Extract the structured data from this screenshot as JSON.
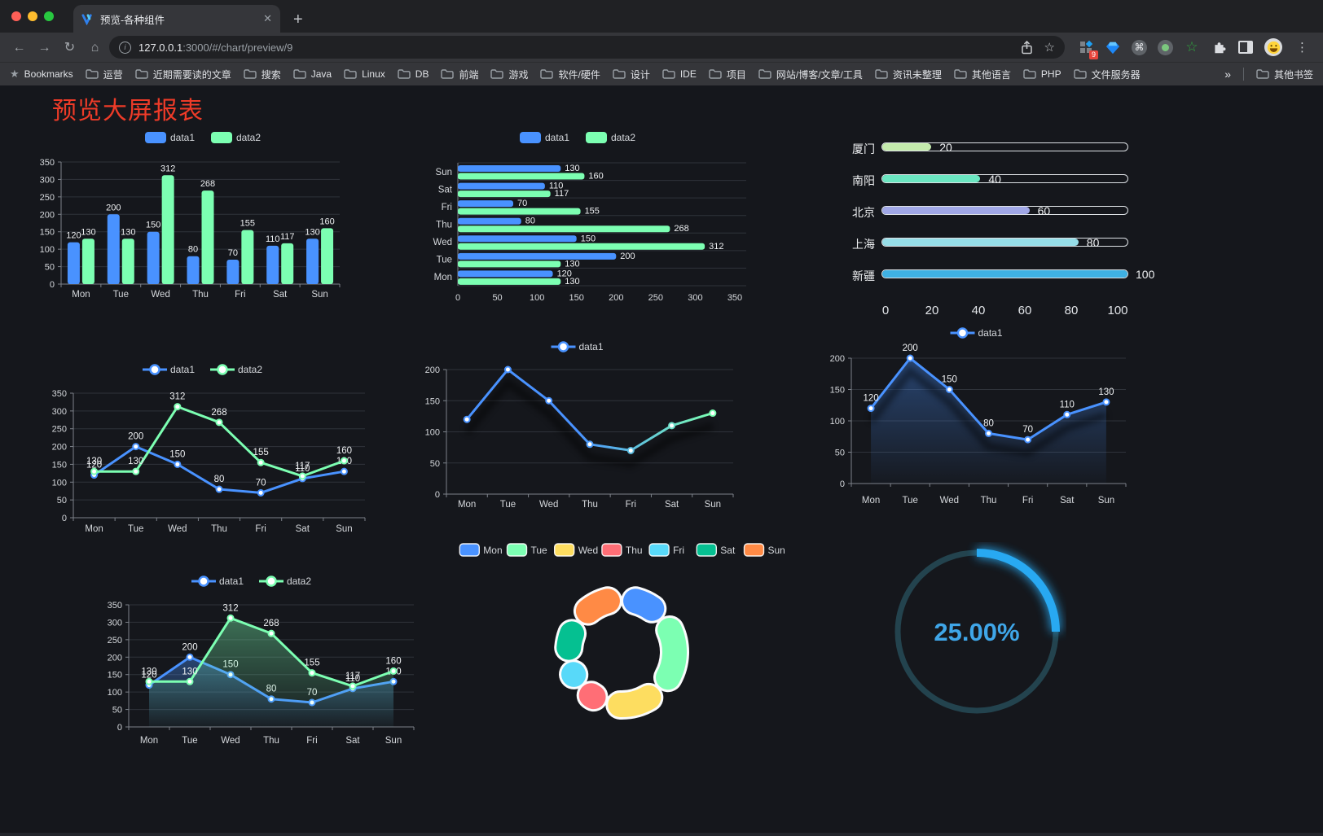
{
  "browser": {
    "tab_title": "预览-各种组件",
    "url_host": "127.0.0.1",
    "url_rest": ":3000/#/chart/preview/9",
    "extension_badge": "9",
    "bookmarks_label": "Bookmarks",
    "bookmark_folders": [
      "运营",
      "近期需要读的文章",
      "搜索",
      "Java",
      "Linux",
      "DB",
      "前端",
      "游戏",
      "软件/硬件",
      "设计",
      "IDE",
      "项目",
      "网站/博客/文章/工具",
      "资讯未整理",
      "其他语言",
      "PHP",
      "文件服务器"
    ],
    "overflow_symbol": "»",
    "other_bookmarks": "其他书签"
  },
  "page": {
    "title": "预览大屏报表",
    "title_color": "#ee3b28",
    "background": "#15171c"
  },
  "chart_data": [
    {
      "id": "grouped-bar",
      "type": "bar",
      "categories": [
        "Mon",
        "Tue",
        "Wed",
        "Thu",
        "Fri",
        "Sat",
        "Sun"
      ],
      "series": [
        {
          "name": "data1",
          "color": "#4992ff",
          "values": [
            120,
            200,
            150,
            80,
            70,
            110,
            130
          ]
        },
        {
          "name": "data2",
          "color": "#7cffb2",
          "values": [
            130,
            130,
            312,
            268,
            155,
            117,
            160
          ]
        }
      ],
      "ylim": [
        0,
        350
      ],
      "ytick": 50,
      "legend_position": "top",
      "grid": true
    },
    {
      "id": "horizontal-bar",
      "type": "bar",
      "orientation": "horizontal",
      "categories": [
        "Mon",
        "Tue",
        "Wed",
        "Thu",
        "Fri",
        "Sat",
        "Sun"
      ],
      "series": [
        {
          "name": "data1",
          "color": "#4992ff",
          "values": [
            120,
            200,
            150,
            80,
            70,
            110,
            130
          ]
        },
        {
          "name": "data2",
          "color": "#7cffb2",
          "values": [
            130,
            130,
            312,
            268,
            155,
            117,
            160
          ]
        }
      ],
      "xlim": [
        0,
        350
      ],
      "xtick": 50,
      "legend_position": "top"
    },
    {
      "id": "progress-bars",
      "type": "bar",
      "subtype": "progress",
      "max": 100,
      "axis_ticks": [
        0,
        20,
        40,
        60,
        80,
        100
      ],
      "items": [
        {
          "label": "厦门",
          "value": 20,
          "color": "#c4ebad"
        },
        {
          "label": "南阳",
          "value": 40,
          "color": "#6be6c1"
        },
        {
          "label": "北京",
          "value": 60,
          "color": "#a0a7e6"
        },
        {
          "label": "上海",
          "value": 80,
          "color": "#96dee8"
        },
        {
          "label": "新疆",
          "value": 100,
          "color": "#3fb1e3"
        }
      ]
    },
    {
      "id": "line-two-series",
      "type": "line",
      "categories": [
        "Mon",
        "Tue",
        "Wed",
        "Thu",
        "Fri",
        "Sat",
        "Sun"
      ],
      "series": [
        {
          "name": "data1",
          "color": "#4992ff",
          "values": [
            120,
            200,
            150,
            80,
            70,
            110,
            130
          ]
        },
        {
          "name": "data2",
          "color": "#7cffb2",
          "values": [
            130,
            130,
            312,
            268,
            155,
            117,
            160
          ]
        }
      ],
      "ylim": [
        0,
        350
      ],
      "ytick": 50,
      "show_labels": true,
      "legend_position": "top"
    },
    {
      "id": "line-gradient",
      "type": "line",
      "categories": [
        "Mon",
        "Tue",
        "Wed",
        "Thu",
        "Fri",
        "Sat",
        "Sun"
      ],
      "series": [
        {
          "name": "data1",
          "color": "#4992ff",
          "gradient": [
            "#4992ff",
            "#7cffb2"
          ],
          "values": [
            120,
            200,
            150,
            80,
            70,
            110,
            130
          ]
        }
      ],
      "ylim": [
        0,
        200
      ],
      "ytick": 50,
      "show_labels": false,
      "legend_position": "top"
    },
    {
      "id": "area-line",
      "type": "area",
      "categories": [
        "Mon",
        "Tue",
        "Wed",
        "Thu",
        "Fri",
        "Sat",
        "Sun"
      ],
      "series": [
        {
          "name": "data1",
          "color": "#4992ff",
          "area": true,
          "values": [
            120,
            200,
            150,
            80,
            70,
            110,
            130
          ]
        }
      ],
      "ylim": [
        0,
        200
      ],
      "ytick": 50,
      "show_labels": true,
      "legend_position": "top"
    },
    {
      "id": "line-area-two-series",
      "type": "area",
      "categories": [
        "Mon",
        "Tue",
        "Wed",
        "Thu",
        "Fri",
        "Sat",
        "Sun"
      ],
      "series": [
        {
          "name": "data1",
          "color": "#4992ff",
          "area": true,
          "values": [
            120,
            200,
            150,
            80,
            70,
            110,
            130
          ]
        },
        {
          "name": "data2",
          "color": "#7cffb2",
          "area": true,
          "values": [
            130,
            130,
            312,
            268,
            155,
            117,
            160
          ]
        }
      ],
      "ylim": [
        0,
        350
      ],
      "ytick": 50,
      "show_labels": true,
      "legend_position": "top"
    },
    {
      "id": "donut",
      "type": "pie",
      "categories": [
        "Mon",
        "Tue",
        "Wed",
        "Thu",
        "Fri",
        "Sat",
        "Sun"
      ],
      "values": [
        120,
        200,
        150,
        80,
        70,
        110,
        130
      ],
      "colors": [
        "#4992ff",
        "#7cffb2",
        "#fddd60",
        "#ff6e76",
        "#58d9f9",
        "#05c091",
        "#ff8a45"
      ],
      "legend_position": "top",
      "inner_radius": 49,
      "outer_radius": 81
    },
    {
      "id": "gauge",
      "type": "gauge",
      "value": 25,
      "label": "25.00%",
      "color": "#28a9f2",
      "track_color": "#23434e",
      "text_color": "#3fa6e8"
    }
  ]
}
